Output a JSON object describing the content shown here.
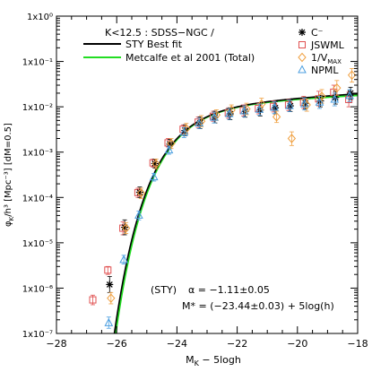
{
  "chart_data": {
    "type": "scatter",
    "xlabel": "M",
    "xlabel_sub": "K",
    "xlabel_suffix": " − 5logh",
    "ylabel": "φ",
    "ylabel_sub": "K",
    "ylabel_suffix": "/h³ [Mpc⁻³] [dM=0.5]",
    "xlim": [
      -28,
      -18
    ],
    "ylim_log10": [
      -7,
      0
    ],
    "x_ticks": [
      -28,
      -26,
      -24,
      -22,
      -20,
      -18
    ],
    "x_tick_labels": [
      "−28",
      "−26",
      "−24",
      "−22",
      "−20",
      "−18"
    ],
    "y_ticks_log10": [
      0,
      -1,
      -2,
      -3,
      -4,
      -5,
      -6,
      -7
    ],
    "y_tick_labels": [
      "1x10⁰",
      "1x10⁻¹",
      "1x10⁻²",
      "1x10⁻³",
      "1x10⁻⁴",
      "1x10⁻⁵",
      "1x10⁻⁶",
      "1x10⁻⁷"
    ],
    "legend": {
      "title": "K<12.5 : SDSS−NGC /",
      "lines": [
        {
          "label": "STY Best fit",
          "color": "#000000"
        },
        {
          "label": "Metcalfe et al 2001 (Total)",
          "color": "#22dd22"
        }
      ],
      "markers": [
        {
          "key": "C",
          "label": "C⁻",
          "marker": "asterisk",
          "color": "#000000"
        },
        {
          "key": "J",
          "label": "JSWML",
          "marker": "square",
          "color": "#e05050"
        },
        {
          "key": "V",
          "label": "1/V",
          "label_sub": "MAX",
          "marker": "diamond",
          "color": "#f0a040"
        },
        {
          "key": "N",
          "label": "NPML",
          "marker": "triangle",
          "color": "#4a9ee0"
        }
      ]
    },
    "annotation": {
      "prefix": "(STY)",
      "alpha_line": "α = −1.11±0.05",
      "mstar_line": "M* = (−23.44±0.03) + 5log(h)"
    },
    "sty_fit": {
      "phi_star": 0.0122,
      "M_star": -23.44,
      "alpha": -1.11,
      "color": "#000000"
    },
    "metcalfe_fit": {
      "phi_star": 0.0125,
      "M_star": -23.39,
      "alpha": -1.09,
      "color": "#22dd22"
    },
    "series": [
      {
        "key": "J",
        "color": "#e05050",
        "points": [
          [
            -26.75,
            5.5e-07,
            7e-07,
            4.3e-07
          ],
          [
            -26.25,
            2.5e-06,
            3e-06,
            2e-06
          ],
          [
            -25.75,
            2.1e-05,
            2.9e-05,
            1.5e-05
          ],
          [
            -25.25,
            0.000128,
            0.00016,
            0.0001
          ],
          [
            -24.75,
            0.00058,
            0.0007,
            0.00047
          ],
          [
            -24.25,
            0.0016,
            0.002,
            0.0013
          ],
          [
            -23.75,
            0.0032,
            0.004,
            0.0025
          ],
          [
            -23.25,
            0.0046,
            0.006,
            0.0035
          ],
          [
            -22.75,
            0.0062,
            0.008,
            0.0048
          ],
          [
            -22.25,
            0.0073,
            0.0095,
            0.0056
          ],
          [
            -21.75,
            0.0083,
            0.011,
            0.0063
          ],
          [
            -21.25,
            0.0092,
            0.012,
            0.007
          ],
          [
            -20.75,
            0.0102,
            0.0135,
            0.0077
          ],
          [
            -20.25,
            0.011,
            0.0145,
            0.0083
          ],
          [
            -19.75,
            0.0125,
            0.017,
            0.0092
          ],
          [
            -19.25,
            0.015,
            0.022,
            0.0105
          ],
          [
            -18.75,
            0.021,
            0.03,
            0.015
          ],
          [
            -18.25,
            0.0145,
            0.021,
            0.01
          ]
        ]
      },
      {
        "key": "C",
        "color": "#000000",
        "points": [
          [
            -26.25,
            1.2e-06,
            1.8e-06,
            8e-07
          ],
          [
            -25.75,
            2.2e-05,
            3.2e-05,
            1.5e-05
          ],
          [
            -25.25,
            0.00013,
            0.00017,
            0.0001
          ],
          [
            -24.75,
            0.00056,
            0.0007,
            0.00045
          ],
          [
            -24.25,
            0.0015,
            0.0019,
            0.0012
          ],
          [
            -23.75,
            0.003,
            0.004,
            0.0023
          ],
          [
            -23.25,
            0.0044,
            0.006,
            0.0033
          ],
          [
            -22.75,
            0.0059,
            0.008,
            0.0044
          ],
          [
            -22.25,
            0.007,
            0.0095,
            0.0052
          ],
          [
            -21.75,
            0.0079,
            0.0105,
            0.0059
          ],
          [
            -21.25,
            0.0085,
            0.0115,
            0.0063
          ],
          [
            -20.75,
            0.0095,
            0.013,
            0.007
          ],
          [
            -20.25,
            0.0105,
            0.014,
            0.0079
          ],
          [
            -19.75,
            0.012,
            0.016,
            0.009
          ],
          [
            -19.25,
            0.0135,
            0.018,
            0.01
          ],
          [
            -18.75,
            0.016,
            0.022,
            0.0115
          ],
          [
            -18.25,
            0.02,
            0.027,
            0.0145
          ]
        ]
      },
      {
        "key": "V",
        "color": "#f0a040",
        "points": [
          [
            -26.25,
            6e-07,
            8e-07,
            4.5e-07
          ],
          [
            -25.75,
            2.1e-05,
            2.8e-05,
            1.6e-05
          ],
          [
            -25.25,
            0.000125,
            0.00016,
            9.5e-05
          ],
          [
            -24.75,
            0.00055,
            0.0007,
            0.00043
          ],
          [
            -24.25,
            0.00155,
            0.002,
            0.0012
          ],
          [
            -23.75,
            0.0033,
            0.0043,
            0.0025
          ],
          [
            -23.25,
            0.0048,
            0.0064,
            0.0036
          ],
          [
            -22.75,
            0.0066,
            0.0086,
            0.005
          ],
          [
            -22.25,
            0.0085,
            0.011,
            0.0065
          ],
          [
            -21.75,
            0.009,
            0.012,
            0.0067
          ],
          [
            -21.25,
            0.0115,
            0.0155,
            0.0085
          ],
          [
            -20.75,
            0.006,
            0.008,
            0.0045
          ],
          [
            -20.25,
            0.002,
            0.0028,
            0.0014
          ],
          [
            -19.75,
            0.011,
            0.015,
            0.008
          ],
          [
            -19.25,
            0.017,
            0.024,
            0.012
          ],
          [
            -18.75,
            0.026,
            0.038,
            0.018
          ],
          [
            -18.25,
            0.05,
            0.07,
            0.035
          ]
        ]
      },
      {
        "key": "N",
        "color": "#4a9ee0",
        "points": [
          [
            -26.25,
            1.7e-07,
            2.3e-07,
            1.3e-07
          ],
          [
            -25.75,
            4.2e-06,
            5.3e-06,
            3.4e-06
          ],
          [
            -25.25,
            4e-05,
            5e-05,
            3.2e-05
          ],
          [
            -24.75,
            0.00028,
            0.00034,
            0.00023
          ],
          [
            -24.25,
            0.0011,
            0.00135,
            0.0009
          ],
          [
            -23.75,
            0.0027,
            0.0035,
            0.0021
          ],
          [
            -23.25,
            0.0043,
            0.0056,
            0.0033
          ],
          [
            -22.75,
            0.0058,
            0.0076,
            0.0044
          ],
          [
            -22.25,
            0.007,
            0.0092,
            0.0053
          ],
          [
            -21.75,
            0.008,
            0.0105,
            0.006
          ],
          [
            -21.25,
            0.0087,
            0.0115,
            0.0065
          ],
          [
            -20.75,
            0.0096,
            0.013,
            0.0071
          ],
          [
            -20.25,
            0.0105,
            0.014,
            0.0078
          ],
          [
            -19.75,
            0.0115,
            0.0155,
            0.0085
          ],
          [
            -19.25,
            0.0125,
            0.017,
            0.0092
          ],
          [
            -18.75,
            0.0145,
            0.02,
            0.0105
          ],
          [
            -18.25,
            0.0175,
            0.024,
            0.013
          ]
        ]
      }
    ]
  }
}
